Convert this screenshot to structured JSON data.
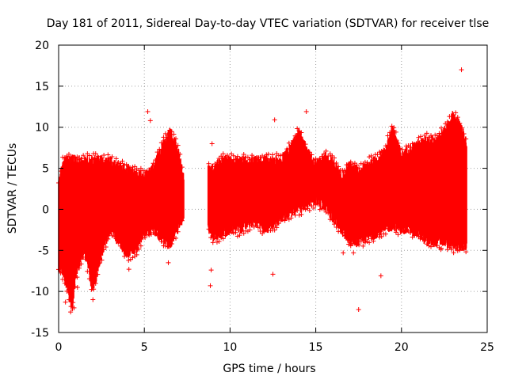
{
  "chart_data": {
    "type": "scatter",
    "title": "Day 181 of 2011, Sidereal Day-to-day VTEC variation (SDTVAR) for receiver tlse",
    "xlabel": "GPS time / hours",
    "ylabel": "SDTVAR / TECUs",
    "xlim": [
      0,
      25
    ],
    "ylim": [
      -15,
      20
    ],
    "xticks": [
      "0",
      "5",
      "10",
      "15",
      "20",
      "25"
    ],
    "yticks": [
      "-15",
      "-10",
      "-5",
      "0",
      "5",
      "10",
      "15",
      "20"
    ],
    "xtick_values": [
      0,
      5,
      10,
      15,
      20,
      25
    ],
    "ytick_values": [
      -15,
      -10,
      -5,
      0,
      5,
      10,
      15,
      20
    ],
    "grid": true,
    "marker": "+",
    "color": "#ff0000",
    "gap_hours": [
      7.3,
      8.7
    ],
    "envelope": [
      {
        "x": 0.0,
        "lo": -7.0,
        "hi": 3.0
      },
      {
        "x": 0.2,
        "lo": -7.5,
        "hi": 5.5
      },
      {
        "x": 0.5,
        "lo": -9.5,
        "hi": 6.0
      },
      {
        "x": 0.8,
        "lo": -12.0,
        "hi": 6.2
      },
      {
        "x": 1.0,
        "lo": -8.0,
        "hi": 6.0
      },
      {
        "x": 1.5,
        "lo": -5.0,
        "hi": 6.0
      },
      {
        "x": 2.0,
        "lo": -10.0,
        "hi": 6.0
      },
      {
        "x": 2.5,
        "lo": -5.5,
        "hi": 6.0
      },
      {
        "x": 3.0,
        "lo": -2.5,
        "hi": 5.8
      },
      {
        "x": 3.5,
        "lo": -4.0,
        "hi": 5.5
      },
      {
        "x": 4.0,
        "lo": -5.5,
        "hi": 5.0
      },
      {
        "x": 4.5,
        "lo": -5.0,
        "hi": 4.5
      },
      {
        "x": 5.0,
        "lo": -3.0,
        "hi": 4.0
      },
      {
        "x": 5.5,
        "lo": -2.5,
        "hi": 5.0
      },
      {
        "x": 6.0,
        "lo": -3.5,
        "hi": 7.5
      },
      {
        "x": 6.5,
        "lo": -4.5,
        "hi": 9.5
      },
      {
        "x": 7.0,
        "lo": -2.0,
        "hi": 7.0
      },
      {
        "x": 7.3,
        "lo": -1.0,
        "hi": 4.0
      },
      {
        "x": 8.7,
        "lo": -2.0,
        "hi": 5.0
      },
      {
        "x": 9.0,
        "lo": -3.5,
        "hi": 5.0
      },
      {
        "x": 9.5,
        "lo": -3.0,
        "hi": 6.0
      },
      {
        "x": 10.0,
        "lo": -2.5,
        "hi": 6.0
      },
      {
        "x": 10.5,
        "lo": -2.5,
        "hi": 6.0
      },
      {
        "x": 11.0,
        "lo": -2.0,
        "hi": 6.0
      },
      {
        "x": 11.5,
        "lo": -1.5,
        "hi": 6.0
      },
      {
        "x": 12.0,
        "lo": -2.5,
        "hi": 6.0
      },
      {
        "x": 12.5,
        "lo": -2.0,
        "hi": 6.0
      },
      {
        "x": 13.0,
        "lo": -1.0,
        "hi": 6.0
      },
      {
        "x": 13.5,
        "lo": -0.5,
        "hi": 7.5
      },
      {
        "x": 14.0,
        "lo": 0.0,
        "hi": 9.5
      },
      {
        "x": 14.5,
        "lo": 0.5,
        "hi": 7.0
      },
      {
        "x": 15.0,
        "lo": 1.0,
        "hi": 5.5
      },
      {
        "x": 15.5,
        "lo": 0.5,
        "hi": 6.5
      },
      {
        "x": 16.0,
        "lo": -1.0,
        "hi": 6.0
      },
      {
        "x": 16.5,
        "lo": -2.5,
        "hi": 4.0
      },
      {
        "x": 17.0,
        "lo": -4.0,
        "hi": 5.5
      },
      {
        "x": 17.5,
        "lo": -4.0,
        "hi": 4.5
      },
      {
        "x": 18.0,
        "lo": -3.5,
        "hi": 5.5
      },
      {
        "x": 18.5,
        "lo": -3.0,
        "hi": 6.0
      },
      {
        "x": 19.0,
        "lo": -2.5,
        "hi": 7.0
      },
      {
        "x": 19.5,
        "lo": -2.0,
        "hi": 10.0
      },
      {
        "x": 20.0,
        "lo": -2.5,
        "hi": 6.5
      },
      {
        "x": 20.5,
        "lo": -2.5,
        "hi": 7.5
      },
      {
        "x": 21.0,
        "lo": -3.0,
        "hi": 8.0
      },
      {
        "x": 21.5,
        "lo": -4.0,
        "hi": 8.5
      },
      {
        "x": 22.0,
        "lo": -4.0,
        "hi": 8.5
      },
      {
        "x": 22.5,
        "lo": -4.0,
        "hi": 9.5
      },
      {
        "x": 23.0,
        "lo": -4.5,
        "hi": 11.5
      },
      {
        "x": 23.5,
        "lo": -4.5,
        "hi": 10.0
      },
      {
        "x": 23.8,
        "lo": -4.5,
        "hi": 8.0
      }
    ],
    "outliers": [
      [
        0.4,
        -11.3
      ],
      [
        0.7,
        -12.5
      ],
      [
        2.1,
        6.3
      ],
      [
        5.2,
        11.9
      ],
      [
        5.35,
        10.8
      ],
      [
        8.95,
        8.0
      ],
      [
        8.9,
        -7.4
      ],
      [
        8.85,
        -9.3
      ],
      [
        12.5,
        -7.9
      ],
      [
        12.6,
        10.9
      ],
      [
        14.45,
        11.9
      ],
      [
        17.5,
        -12.2
      ],
      [
        18.8,
        -8.1
      ],
      [
        23.5,
        17.0
      ],
      [
        0.9,
        -12.0
      ],
      [
        1.1,
        -9.5
      ],
      [
        2.0,
        -11.0
      ],
      [
        4.1,
        -7.3
      ],
      [
        6.4,
        -6.5
      ],
      [
        16.6,
        -5.3
      ],
      [
        17.2,
        -5.3
      ],
      [
        19.0,
        7.0
      ],
      [
        21.1,
        -3.6
      ],
      [
        22.3,
        -4.9
      ]
    ]
  }
}
